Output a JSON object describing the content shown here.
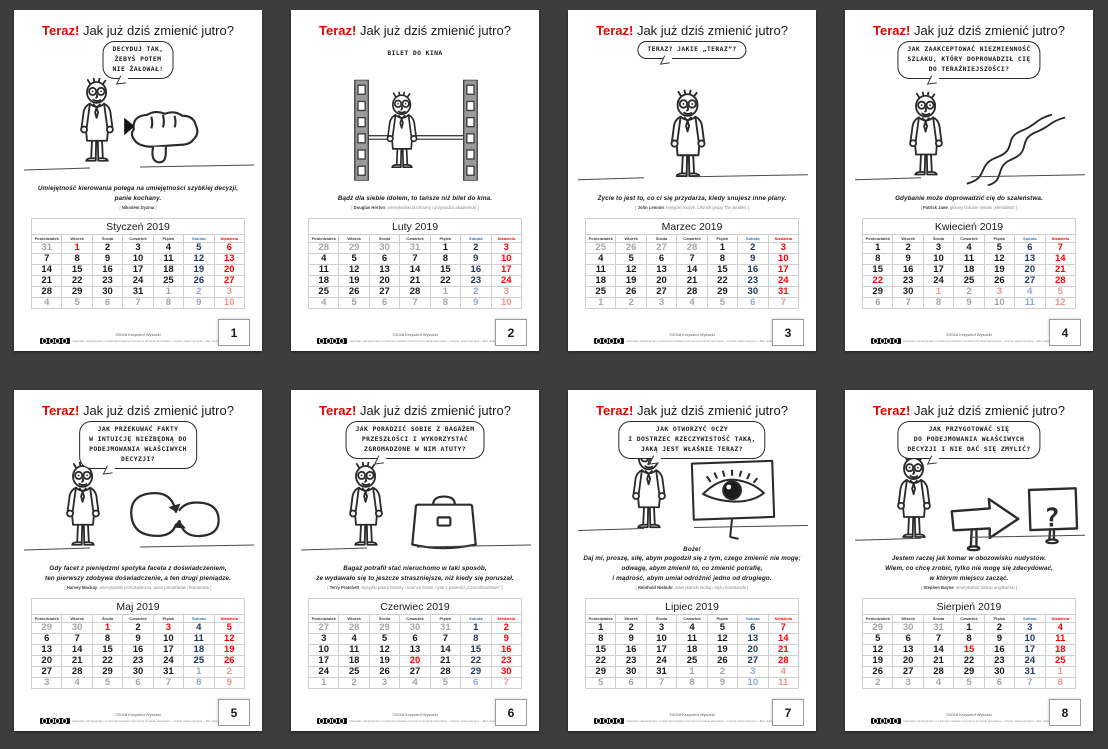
{
  "background": "#3d3d3d",
  "page_title": {
    "accent": "Teraz!",
    "rest": " Jak już dziś zmienić jutro?"
  },
  "colors": {
    "page_bg": "#3d3d3d",
    "accent_red": "#e10600",
    "sunday_red": "#fe0000",
    "saturday_blue": "#1f3864",
    "saturday_header_blue": "#2e74b5",
    "weekday_dark": "#1a1a1a",
    "outside_gray": "#a6a6a6",
    "outside_saturday": "#8faadc",
    "outside_sunday": "#f0958e",
    "grid_line": "#cfcfcf"
  },
  "weekday_headers": [
    "Poniedziałek",
    "Wtorek",
    "Środa",
    "Czwartek",
    "Piątek",
    "Sobota",
    "Niedziela"
  ],
  "footer": {
    "copyright": "©2018 Krzysztof Wysocki",
    "license": "Kalendarz udostępniany na licencji Creative Commons Uznanie autorstwa – Użycie niekomercyjne – Bez utworów zależnych (CC BY-NC-ND)",
    "cc_badge": "CC BY-NC-ND"
  },
  "pages": [
    {
      "number": "1",
      "cartoon": "thumb",
      "bubble": {
        "style": "bubble",
        "lines": [
          "DECYDUJ TAK,",
          "ŻEBYŚ POTEM",
          "NIE ŻAŁOWAŁ!"
        ]
      },
      "quote_lines": [
        "Umiejętność kierowania polega na umiejętności szybkiej decyzji,",
        "panie kochany."
      ],
      "attribution": {
        "name": "Nikodem Dyzma",
        "desc": ""
      },
      "month": {
        "title": "Styczeń 2019",
        "weeks": [
          [
            "31o",
            "1h",
            "2",
            "3",
            "4",
            "5s",
            "6u"
          ],
          [
            "7",
            "8",
            "9",
            "10",
            "11",
            "12s",
            "13u"
          ],
          [
            "14",
            "15",
            "16",
            "17",
            "18",
            "19s",
            "20u"
          ],
          [
            "21",
            "22",
            "23",
            "24",
            "25",
            "26s",
            "27u"
          ],
          [
            "28",
            "29",
            "30",
            "31",
            "1o",
            "2os",
            "3ou"
          ],
          [
            "4o",
            "5o",
            "6o",
            "7o",
            "8o",
            "9os",
            "10ou"
          ]
        ]
      }
    },
    {
      "number": "2",
      "cartoon": "film",
      "bubble": {
        "style": "plain",
        "lines": [
          "BILET DO KINA"
        ]
      },
      "quote_lines": [
        "Bądź dla siebie idolem, to tańsze niż bilet do kina."
      ],
      "attribution": {
        "name": "Douglas Horton",
        "desc": "amerykański duchowny i przywódca akademicki"
      },
      "month": {
        "title": "Luty 2019",
        "weeks": [
          [
            "28o",
            "29o",
            "30o",
            "31o",
            "1",
            "2s",
            "3u"
          ],
          [
            "4",
            "5",
            "6",
            "7",
            "8",
            "9s",
            "10u"
          ],
          [
            "11",
            "12",
            "13",
            "14",
            "15",
            "16s",
            "17u"
          ],
          [
            "18",
            "19",
            "20",
            "21",
            "22",
            "23s",
            "24u"
          ],
          [
            "25",
            "26",
            "27",
            "28",
            "1o",
            "2os",
            "3ou"
          ],
          [
            "4o",
            "5o",
            "6o",
            "7o",
            "8o",
            "9os",
            "10ou"
          ]
        ]
      }
    },
    {
      "number": "3",
      "cartoon": "spread",
      "bubble": {
        "style": "bubble",
        "lines": [
          "TERAZ? JAKIE „TERAZ”?"
        ]
      },
      "quote_lines": [
        "Życie to jest to, co ci się przydarza, kiedy snujesz inne plany."
      ],
      "attribution": {
        "name": "John Lennon",
        "desc": "brytyjski muzyk, członek grupy The Beatles"
      },
      "month": {
        "title": "Marzec 2019",
        "weeks": [
          [
            "25o",
            "26o",
            "27o",
            "28o",
            "1",
            "2s",
            "3u"
          ],
          [
            "4",
            "5",
            "6",
            "7",
            "8",
            "9s",
            "10u"
          ],
          [
            "11",
            "12",
            "13",
            "14",
            "15",
            "16s",
            "17u"
          ],
          [
            "18",
            "19",
            "20",
            "21",
            "22",
            "23s",
            "24u"
          ],
          [
            "25",
            "26",
            "27",
            "28",
            "29",
            "30s",
            "31u"
          ],
          [
            "1o",
            "2o",
            "3o",
            "4o",
            "5o",
            "6os",
            "7ou"
          ]
        ]
      }
    },
    {
      "number": "4",
      "cartoon": "road",
      "bubble": {
        "style": "bubble",
        "lines": [
          "JAK ZAAKCEPTOWAĆ NIEZMIENNOŚĆ",
          "SZLAKU, KTÓRY DOPROWADZIŁ CIĘ",
          "DO TERAŹNIEJSZOŚCI?"
        ]
      },
      "quote_lines": [
        "Gdybanie może doprowadzić cię do szaleństwa."
      ],
      "attribution": {
        "name": "Patrick Jane",
        "desc": "główny bohater serialu „Mentalista”"
      },
      "month": {
        "title": "Kwiecień 2019",
        "weeks": [
          [
            "1",
            "2",
            "3",
            "4",
            "5",
            "6s",
            "7u"
          ],
          [
            "8",
            "9",
            "10",
            "11",
            "12",
            "13s",
            "14u"
          ],
          [
            "15",
            "16",
            "17",
            "18",
            "19",
            "20s",
            "21u"
          ],
          [
            "22h",
            "23",
            "24",
            "25",
            "26",
            "27s",
            "28u"
          ],
          [
            "29",
            "30",
            "1oh",
            "2o",
            "3oh",
            "4os",
            "5ou"
          ],
          [
            "6o",
            "7o",
            "8o",
            "9o",
            "10o",
            "11os",
            "12ou"
          ]
        ]
      }
    },
    {
      "number": "5",
      "cartoon": "cycle",
      "bubble": {
        "style": "bubble",
        "lines": [
          "JAK PRZEKUWAĆ FAKTY",
          "W INTUICJĘ NIEZBĘDNĄ DO",
          "PODEJMOWANIA WŁAŚCIWYCH",
          "DECYZJI?"
        ]
      },
      "quote_lines": [
        "Gdy facet z pieniędzmi spotyka faceta z doświadczeniem,",
        "ten pierwszy zdobywa doświadczenie, a ten drugi pieniądze."
      ],
      "attribution": {
        "name": "Harvey Mackay",
        "desc": "amerykański przedsiębiorca, autor poradników i felietonista"
      },
      "month": {
        "title": "Maj 2019",
        "weeks": [
          [
            "29o",
            "30o",
            "1h",
            "2",
            "3h",
            "4s",
            "5u"
          ],
          [
            "6",
            "7",
            "8",
            "9",
            "10",
            "11s",
            "12u"
          ],
          [
            "13",
            "14",
            "15",
            "16",
            "17",
            "18s",
            "19u"
          ],
          [
            "20",
            "21",
            "22",
            "23",
            "24",
            "25s",
            "26u"
          ],
          [
            "27",
            "28",
            "29",
            "30",
            "31",
            "1os",
            "2ou"
          ],
          [
            "3o",
            "4o",
            "5o",
            "6o",
            "7o",
            "8os",
            "9ou"
          ]
        ]
      }
    },
    {
      "number": "6",
      "cartoon": "case",
      "bubble": {
        "style": "bubble",
        "lines": [
          "JAK PORADZIĆ SOBIE Z BAGAŻEM",
          "PRZESZŁOŚCI I WYKORZYSTAĆ",
          "ZGROMADZONE W NIM ATUTY?"
        ]
      },
      "quote_lines": [
        "Bagaż potrafił stać nieruchomo w taki sposób,",
        "że wydawało się to jeszcze straszniejsze, niż kiedy się poruszał."
      ],
      "attribution": {
        "name": "Terry Pratchett",
        "desc": "brytyjski pisarz fantasy i science fiction, cytat z powieści „Czarodzicielstwo”"
      },
      "month": {
        "title": "Czerwiec 2019",
        "weeks": [
          [
            "27o",
            "28o",
            "29o",
            "30o",
            "31o",
            "1s",
            "2u"
          ],
          [
            "3",
            "4",
            "5",
            "6",
            "7",
            "8s",
            "9u"
          ],
          [
            "10",
            "11",
            "12",
            "13",
            "14",
            "15s",
            "16u"
          ],
          [
            "17",
            "18",
            "19",
            "20h",
            "21",
            "22s",
            "23u"
          ],
          [
            "24",
            "25",
            "26",
            "27",
            "28",
            "29s",
            "30u"
          ],
          [
            "1o",
            "2o",
            "3o",
            "4o",
            "5o",
            "6os",
            "7ou"
          ]
        ]
      }
    },
    {
      "number": "7",
      "cartoon": "eye",
      "bubble": {
        "style": "bubble",
        "lines": [
          "JAK OTWORZYĆ OCZY",
          "I DOSTRZEC RZECZYWISTOŚĆ TAKĄ,",
          "JAKĄ JEST WŁAŚNIE TERAZ?"
        ]
      },
      "quote_lines": [
        "Boże!",
        "Daj mi, proszę, siłę, abym pogodził się z tym, czego zmienić nie mogę;",
        "odwagę, abym zmienił to, co zmienić potrafię,",
        "i mądrość, abym umiał odróżnić jedno od drugiego."
      ],
      "attribution": {
        "name": "Reinhold Niebuhr",
        "desc": "amerykański teolog i etyk protestancki"
      },
      "month": {
        "title": "Lipiec 2019",
        "weeks": [
          [
            "1",
            "2",
            "3",
            "4",
            "5",
            "6s",
            "7u"
          ],
          [
            "8",
            "9",
            "10",
            "11",
            "12",
            "13s",
            "14u"
          ],
          [
            "15",
            "16",
            "17",
            "18",
            "19",
            "20s",
            "21u"
          ],
          [
            "22",
            "23",
            "24",
            "25",
            "26",
            "27s",
            "28u"
          ],
          [
            "29",
            "30",
            "31",
            "1o",
            "2o",
            "3os",
            "4ou"
          ],
          [
            "5o",
            "6o",
            "7o",
            "8o",
            "9o",
            "10os",
            "11ou"
          ]
        ]
      }
    },
    {
      "number": "8",
      "cartoon": "signs",
      "cartoon_glyph": "?",
      "bubble": {
        "style": "bubble",
        "lines": [
          "JAK PRZYGOTOWAĆ SIĘ",
          "DO PODEJMOWANIA WŁAŚCIWYCH",
          "DECYZJI I NIE DAĆ SIĘ ZMYLIĆ?"
        ]
      },
      "quote_lines": [
        "Jestem raczej jak komar w obozowisku nudystów.",
        "Wiem, co chcę zrobić, tylko nie mogę się zdecydować,",
        "w którym miejscu zacząć."
      ],
      "attribution": {
        "name": "Stephen Bayne",
        "desc": "amerykański biskup anglikański"
      },
      "month": {
        "title": "Sierpień 2019",
        "weeks": [
          [
            "29o",
            "30o",
            "31o",
            "1",
            "2",
            "3s",
            "4u"
          ],
          [
            "5",
            "6",
            "7",
            "8",
            "9",
            "10s",
            "11u"
          ],
          [
            "12",
            "13",
            "14",
            "15h",
            "16",
            "17s",
            "18u"
          ],
          [
            "19",
            "20",
            "21",
            "22",
            "23",
            "24s",
            "25u"
          ],
          [
            "26",
            "27",
            "28",
            "29",
            "30",
            "31s",
            "1ou"
          ],
          [
            "2o",
            "3o",
            "4o",
            "5o",
            "6o",
            "7os",
            "8ou"
          ]
        ]
      }
    }
  ]
}
